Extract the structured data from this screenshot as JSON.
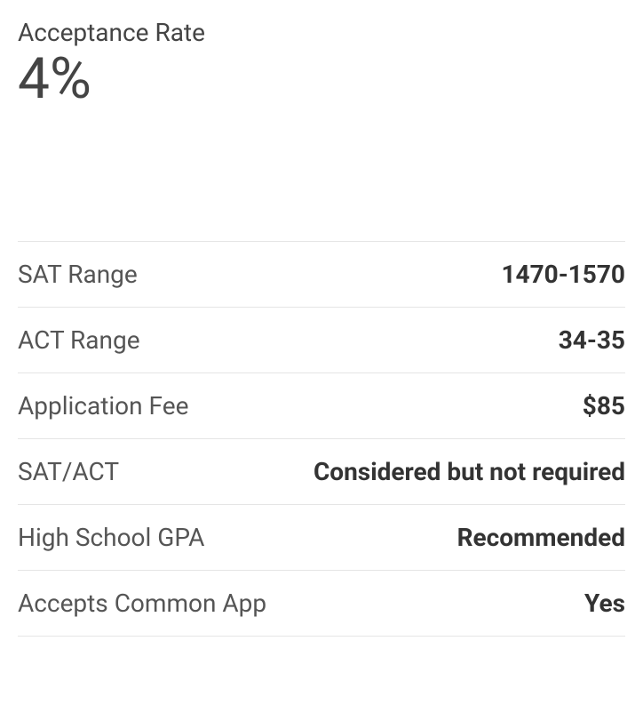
{
  "header": {
    "label": "Acceptance Rate",
    "value": "4%"
  },
  "stats": [
    {
      "label": "SAT Range",
      "value": "1470-1570"
    },
    {
      "label": "ACT Range",
      "value": "34-35"
    },
    {
      "label": "Application Fee",
      "value": "$85"
    },
    {
      "label": "SAT/ACT",
      "value": "Considered but not required"
    },
    {
      "label": "High School GPA",
      "value": "Recommended"
    },
    {
      "label": "Accepts Common App",
      "value": "Yes"
    }
  ],
  "styles": {
    "text_color_label": "#555555",
    "text_color_value": "#333333",
    "header_color": "#444444",
    "border_color": "#e5e5e5",
    "background_color": "#ffffff",
    "label_fontsize": 28,
    "value_fontsize": 28,
    "header_label_fontsize": 28,
    "header_value_fontsize": 64,
    "value_fontweight": 700
  }
}
